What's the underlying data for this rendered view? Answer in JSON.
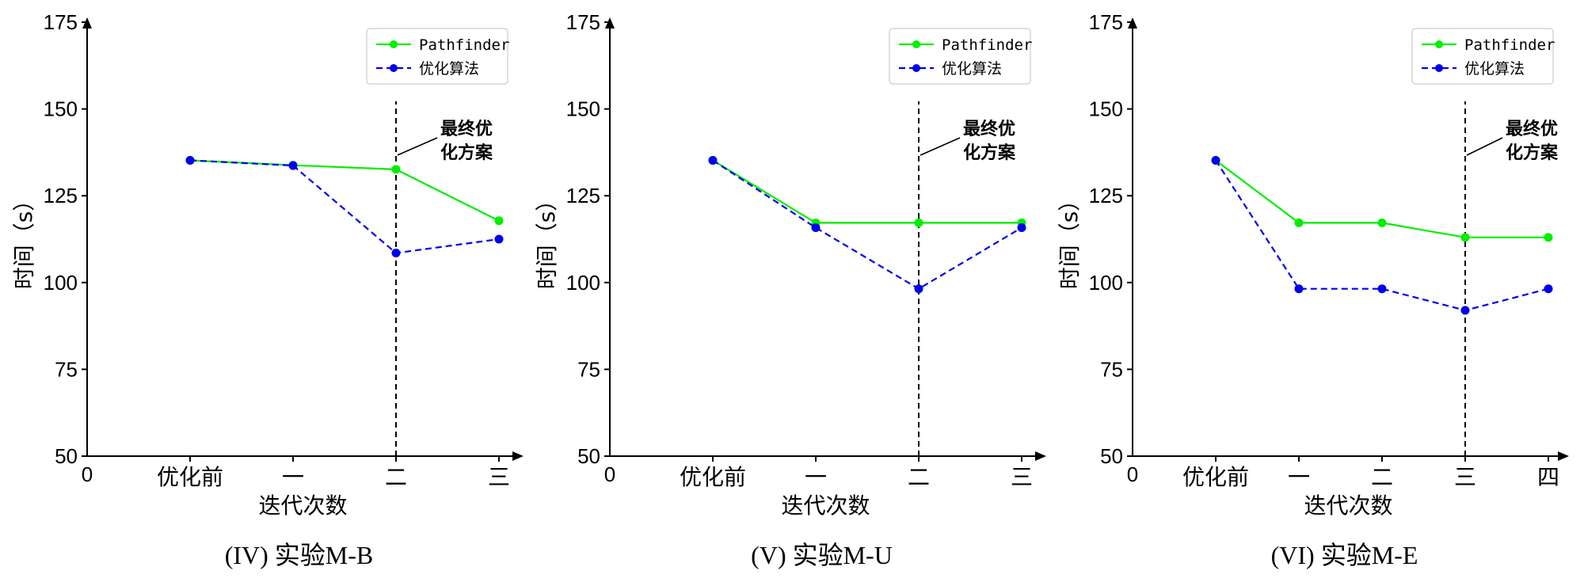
{
  "colors": {
    "pathfinder": "#00ee00",
    "optimized": "#0000ee",
    "axis": "#000000"
  },
  "legend": {
    "placement": "top-right"
  },
  "chart_data": [
    {
      "type": "line",
      "title": "(IV) 实验M-B",
      "xlabel": "迭代次数",
      "ylabel": "时间（s）",
      "x_origin_label": "0",
      "categories": [
        "优化前",
        "一",
        "二",
        "三"
      ],
      "ylim": [
        50,
        175
      ],
      "yticks": [
        50,
        75,
        100,
        125,
        150,
        175
      ],
      "grid": false,
      "series": [
        {
          "name": "Pathfinder",
          "style": "solid",
          "values": [
            135.2,
            133.8,
            132.6,
            117.8
          ]
        },
        {
          "name": "优化算法",
          "style": "dashed",
          "values": [
            135.2,
            133.7,
            108.5,
            112.5
          ]
        }
      ],
      "annotation": {
        "text_lines": [
          "最终优",
          "化方案"
        ],
        "at_category_index": 2
      }
    },
    {
      "type": "line",
      "title": "(V) 实验M-U",
      "xlabel": "迭代次数",
      "ylabel": "时间（s）",
      "x_origin_label": "0",
      "categories": [
        "优化前",
        "一",
        "二",
        "三"
      ],
      "ylim": [
        50,
        175
      ],
      "yticks": [
        50,
        75,
        100,
        125,
        150,
        175
      ],
      "grid": false,
      "series": [
        {
          "name": "Pathfinder",
          "style": "solid",
          "values": [
            135.2,
            117.2,
            117.2,
            117.2
          ]
        },
        {
          "name": "优化算法",
          "style": "dashed",
          "values": [
            135.2,
            115.8,
            98.2,
            115.8
          ]
        }
      ],
      "annotation": {
        "text_lines": [
          "最终优",
          "化方案"
        ],
        "at_category_index": 2
      }
    },
    {
      "type": "line",
      "title": "(VI) 实验M-E",
      "xlabel": "迭代次数",
      "ylabel": "时间（s）",
      "x_origin_label": "0",
      "categories": [
        "优化前",
        "一",
        "二",
        "三",
        "四"
      ],
      "ylim": [
        50,
        175
      ],
      "yticks": [
        50,
        75,
        100,
        125,
        150,
        175
      ],
      "grid": false,
      "series": [
        {
          "name": "Pathfinder",
          "style": "solid",
          "values": [
            135.2,
            117.2,
            117.2,
            113.0,
            113.0
          ]
        },
        {
          "name": "优化算法",
          "style": "dashed",
          "values": [
            135.2,
            98.2,
            98.2,
            92.0,
            98.2
          ]
        }
      ],
      "annotation": {
        "text_lines": [
          "最终优",
          "化方案"
        ],
        "at_category_index": 3
      }
    }
  ]
}
